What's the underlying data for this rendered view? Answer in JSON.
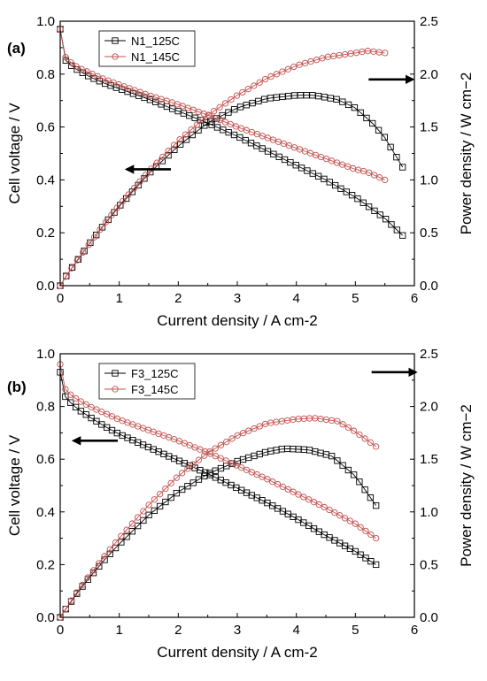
{
  "chart_data": [
    {
      "type": "line",
      "panel_label": "(a)",
      "xlabel": "Current density / A cm-2",
      "ylabel_left": "Cell voltage / V",
      "ylabel_right": "Power density / W cm−2",
      "xlim": [
        0,
        6
      ],
      "ylim_left": [
        0.0,
        1.0
      ],
      "ylim_right": [
        0.0,
        2.5
      ],
      "x_ticks": [
        "0",
        "1",
        "2",
        "3",
        "4",
        "5",
        "6"
      ],
      "y_left_ticks": [
        "0.0",
        "0.2",
        "0.4",
        "0.6",
        "0.8",
        "1.0"
      ],
      "y_right_ticks": [
        "0.0",
        "0.5",
        "1.0",
        "1.5",
        "2.0",
        "2.5"
      ],
      "legend_position": "top-left",
      "series": [
        {
          "name": "N1_125C",
          "color": "#000000",
          "marker": "square",
          "voltage": {
            "x": [
              0,
              0.05,
              0.1,
              0.2,
              0.3,
              0.5,
              0.75,
              1.0,
              1.5,
              2.0,
              2.5,
              3.0,
              3.5,
              4.0,
              4.5,
              5.0,
              5.5,
              5.8
            ],
            "y": [
              0.97,
              0.87,
              0.85,
              0.83,
              0.815,
              0.79,
              0.765,
              0.745,
              0.705,
              0.66,
              0.615,
              0.565,
              0.51,
              0.455,
              0.4,
              0.335,
              0.255,
              0.19
            ]
          },
          "power": {
            "x": [
              0,
              0.05,
              0.1,
              0.2,
              0.3,
              0.5,
              0.75,
              1.0,
              1.5,
              2.0,
              2.5,
              3.0,
              3.5,
              4.0,
              4.3,
              4.7,
              5.0,
              5.3,
              5.5,
              5.8
            ],
            "y": [
              0.0,
              0.045,
              0.09,
              0.17,
              0.245,
              0.4,
              0.58,
              0.75,
              1.06,
              1.32,
              1.54,
              1.68,
              1.77,
              1.8,
              1.8,
              1.76,
              1.68,
              1.53,
              1.4,
              1.12
            ]
          }
        },
        {
          "name": "N1_145C",
          "color": "#c0504d",
          "marker": "circle",
          "voltage": {
            "x": [
              0,
              0.05,
              0.1,
              0.2,
              0.3,
              0.5,
              0.75,
              1.0,
              1.5,
              2.0,
              2.5,
              3.0,
              3.5,
              4.0,
              4.5,
              5.0,
              5.2,
              5.5
            ],
            "y": [
              0.97,
              0.88,
              0.86,
              0.84,
              0.825,
              0.805,
              0.78,
              0.76,
              0.72,
              0.685,
              0.645,
              0.6,
              0.56,
              0.52,
              0.48,
              0.44,
              0.43,
              0.4
            ]
          },
          "power": {
            "x": [
              0,
              0.05,
              0.1,
              0.2,
              0.3,
              0.5,
              0.75,
              1.0,
              1.5,
              2.0,
              2.5,
              3.0,
              3.5,
              4.0,
              4.5,
              5.0,
              5.2,
              5.5
            ],
            "y": [
              0.0,
              0.045,
              0.09,
              0.17,
              0.25,
              0.4,
              0.585,
              0.76,
              1.08,
              1.37,
              1.61,
              1.8,
              1.96,
              2.08,
              2.16,
              2.2,
              2.22,
              2.2
            ]
          }
        }
      ],
      "annotations": [
        {
          "type": "arrow",
          "direction": "left",
          "x": 1.5,
          "y_left": 0.44,
          "meaning": "voltage axis"
        },
        {
          "type": "arrow",
          "direction": "right",
          "x": 5.6,
          "y_left": 0.78,
          "meaning": "power axis"
        }
      ]
    },
    {
      "type": "line",
      "panel_label": "(b)",
      "xlabel": "Current density / A cm-2",
      "ylabel_left": "Cell voltage / V",
      "ylabel_right": "Power density / W cm−2",
      "xlim": [
        0,
        6
      ],
      "ylim_left": [
        0.0,
        1.0
      ],
      "ylim_right": [
        0.0,
        2.5
      ],
      "x_ticks": [
        "0",
        "1",
        "2",
        "3",
        "4",
        "5",
        "6"
      ],
      "y_left_ticks": [
        "0.0",
        "0.2",
        "0.4",
        "0.6",
        "0.8",
        "1.0"
      ],
      "y_right_ticks": [
        "0.0",
        "0.5",
        "1.0",
        "1.5",
        "2.0",
        "2.5"
      ],
      "legend_position": "top-left",
      "series": [
        {
          "name": "F3_125C",
          "color": "#000000",
          "marker": "square",
          "voltage": {
            "x": [
              0,
              0.05,
              0.1,
              0.2,
              0.3,
              0.5,
              0.75,
              1.0,
              1.5,
              2.0,
              2.5,
              3.0,
              3.5,
              4.0,
              4.5,
              5.0,
              5.35
            ],
            "y": [
              0.93,
              0.86,
              0.83,
              0.81,
              0.79,
              0.76,
              0.725,
              0.695,
              0.645,
              0.595,
              0.545,
              0.49,
              0.435,
              0.375,
              0.31,
              0.25,
              0.2
            ]
          },
          "power": {
            "x": [
              0,
              0.05,
              0.1,
              0.2,
              0.3,
              0.5,
              0.75,
              1.0,
              1.5,
              2.0,
              2.5,
              3.0,
              3.5,
              3.8,
              4.2,
              4.6,
              5.0,
              5.35
            ],
            "y": [
              0.0,
              0.043,
              0.083,
              0.16,
              0.24,
              0.38,
              0.545,
              0.695,
              0.97,
              1.19,
              1.36,
              1.48,
              1.57,
              1.6,
              1.59,
              1.53,
              1.34,
              1.06
            ]
          }
        },
        {
          "name": "F3_145C",
          "color": "#c0504d",
          "marker": "circle",
          "voltage": {
            "x": [
              0,
              0.05,
              0.1,
              0.2,
              0.3,
              0.5,
              0.75,
              1.0,
              1.5,
              2.0,
              2.5,
              3.0,
              3.5,
              4.0,
              4.5,
              5.0,
              5.35
            ],
            "y": [
              0.96,
              0.88,
              0.86,
              0.84,
              0.825,
              0.8,
              0.775,
              0.75,
              0.71,
              0.67,
              0.625,
              0.575,
              0.525,
              0.47,
              0.415,
              0.355,
              0.3
            ]
          },
          "power": {
            "x": [
              0,
              0.05,
              0.1,
              0.2,
              0.3,
              0.5,
              0.75,
              1.0,
              1.5,
              2.0,
              2.5,
              3.0,
              3.5,
              4.0,
              4.3,
              4.7,
              5.0,
              5.35
            ],
            "y": [
              0.0,
              0.044,
              0.086,
              0.168,
              0.25,
              0.4,
              0.58,
              0.75,
              1.065,
              1.34,
              1.56,
              1.725,
              1.84,
              1.88,
              1.89,
              1.86,
              1.76,
              1.62
            ]
          }
        }
      ],
      "annotations": [
        {
          "type": "arrow",
          "direction": "left",
          "x": 0.6,
          "y_left": 0.67,
          "meaning": "voltage axis"
        },
        {
          "type": "arrow",
          "direction": "right",
          "x": 5.65,
          "y_left": 0.93,
          "meaning": "power axis"
        }
      ]
    }
  ]
}
